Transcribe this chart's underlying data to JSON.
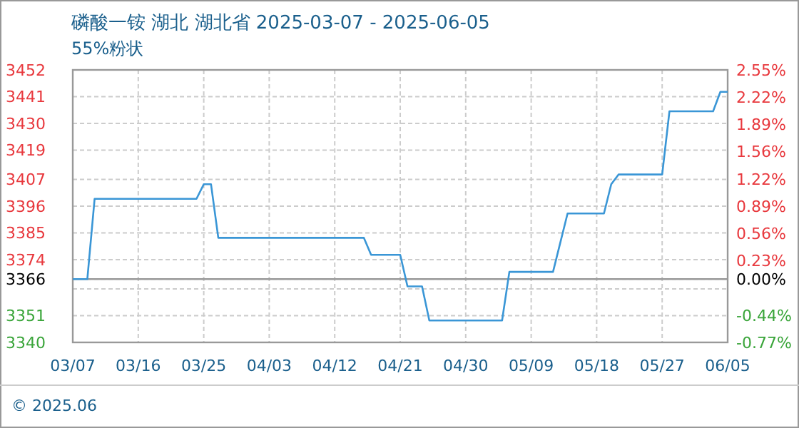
{
  "chart_data": {
    "type": "line",
    "title": "磷酸一铵 湖北 湖北省 2025-03-07 - 2025-06-05",
    "subtitle": "55%粉状",
    "series": [
      {
        "color": "#3a96d6",
        "x": [
          "2025-03-07",
          "2025-03-09",
          "2025-03-10",
          "2025-03-24",
          "2025-03-25",
          "2025-03-26",
          "2025-03-27",
          "2025-04-16",
          "2025-04-17",
          "2025-04-21",
          "2025-04-22",
          "2025-04-24",
          "2025-04-25",
          "2025-05-05",
          "2025-05-06",
          "2025-05-12",
          "2025-05-13",
          "2025-05-14",
          "2025-05-19",
          "2025-05-20",
          "2025-05-21",
          "2025-05-27",
          "2025-05-28",
          "2025-06-03",
          "2025-06-04",
          "2025-06-05"
        ],
        "values": [
          3366,
          3366,
          3399,
          3399,
          3405,
          3405,
          3383,
          3383,
          3376,
          3376,
          3363,
          3363,
          3349,
          3349,
          3369,
          3369,
          3381,
          3393,
          3393,
          3405,
          3409,
          3409,
          3435,
          3435,
          3443,
          3443
        ]
      }
    ],
    "xlim": [
      "2025-03-07",
      "2025-06-05"
    ],
    "xticks": [
      {
        "value": "2025-03-07",
        "label": "03/07"
      },
      {
        "value": "2025-03-16",
        "label": "03/16"
      },
      {
        "value": "2025-03-25",
        "label": "03/25"
      },
      {
        "value": "2025-04-03",
        "label": "04/03"
      },
      {
        "value": "2025-04-12",
        "label": "04/12"
      },
      {
        "value": "2025-04-21",
        "label": "04/21"
      },
      {
        "value": "2025-04-30",
        "label": "04/30"
      },
      {
        "value": "2025-05-09",
        "label": "05/09"
      },
      {
        "value": "2025-05-18",
        "label": "05/18"
      },
      {
        "value": "2025-05-27",
        "label": "05/27"
      },
      {
        "value": "2025-06-05",
        "label": "06/05"
      }
    ],
    "ylim": [
      3340,
      3452
    ],
    "yticks": [
      3340,
      3351,
      {
        "value": 3362,
        "label": null
      },
      3366,
      3374,
      3385,
      3396,
      3407,
      3419,
      3430,
      3441,
      3452
    ],
    "y2lim": [
      -0.77,
      2.55
    ],
    "y2ticks": [
      {
        "value": -0.77,
        "label": "-0.77%"
      },
      {
        "value": -0.44,
        "label": "-0.44%"
      },
      {
        "value": 0,
        "label": "0.00%"
      },
      {
        "value": 0.23,
        "label": "0.23%"
      },
      {
        "value": 0.56,
        "label": "0.56%"
      },
      {
        "value": 0.89,
        "label": "0.89%"
      },
      {
        "value": 1.22,
        "label": "1.22%"
      },
      {
        "value": 1.56,
        "label": "1.56%"
      },
      {
        "value": 1.89,
        "label": "1.89%"
      },
      {
        "value": 2.22,
        "label": "2.22%"
      },
      {
        "value": 2.55,
        "label": "2.55%"
      }
    ],
    "ref_lines": [
      {
        "axis": "y",
        "value": 3366,
        "color": "#999999"
      }
    ],
    "grid": true,
    "marker": "none",
    "line_style": "solid",
    "annotations": [
      "© 2025.06"
    ]
  }
}
